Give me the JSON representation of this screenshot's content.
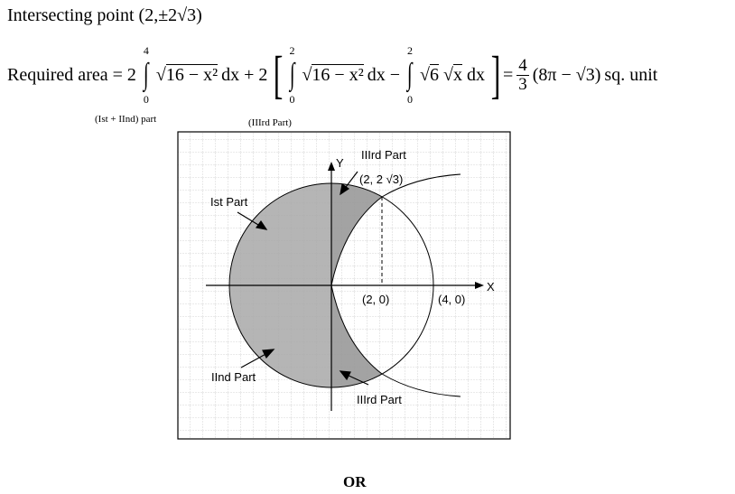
{
  "intersection": {
    "label": "Intersecting point",
    "point": "(2,±2√3)"
  },
  "formula": {
    "lhs": "Required area = 2",
    "int1": {
      "upper": "4",
      "lower": "0",
      "radicand": "16 − x²",
      "tail": "dx + 2",
      "note": "(Ist + IInd) part"
    },
    "int2": {
      "upper": "2",
      "lower": "0",
      "radicand": "16 − x²",
      "tail": "dx −"
    },
    "int3": {
      "upper": "2",
      "lower": "0",
      "body1": "6",
      "body2": "x",
      "tail": "dx",
      "note": "(IIIrd Part)"
    },
    "equals": "=",
    "frac_num": "4",
    "frac_den": "3",
    "result": "(8π − √3)",
    "unit": "sq. unit"
  },
  "diagram": {
    "labels": {
      "ist": "Ist Part",
      "iind": "IInd Part",
      "iiird_top": "IIIrd Part",
      "iiird_bottom": "IIIrd Part",
      "point_top": "(2, 2 √3)",
      "p20": "(2, 0)",
      "p40": "(4, 0)",
      "x_axis": "X",
      "y_axis": "Y"
    },
    "colors": {
      "shade": "#a8a8a8",
      "grid": "#c8c8c8"
    }
  },
  "footer": {
    "or": "OR"
  }
}
